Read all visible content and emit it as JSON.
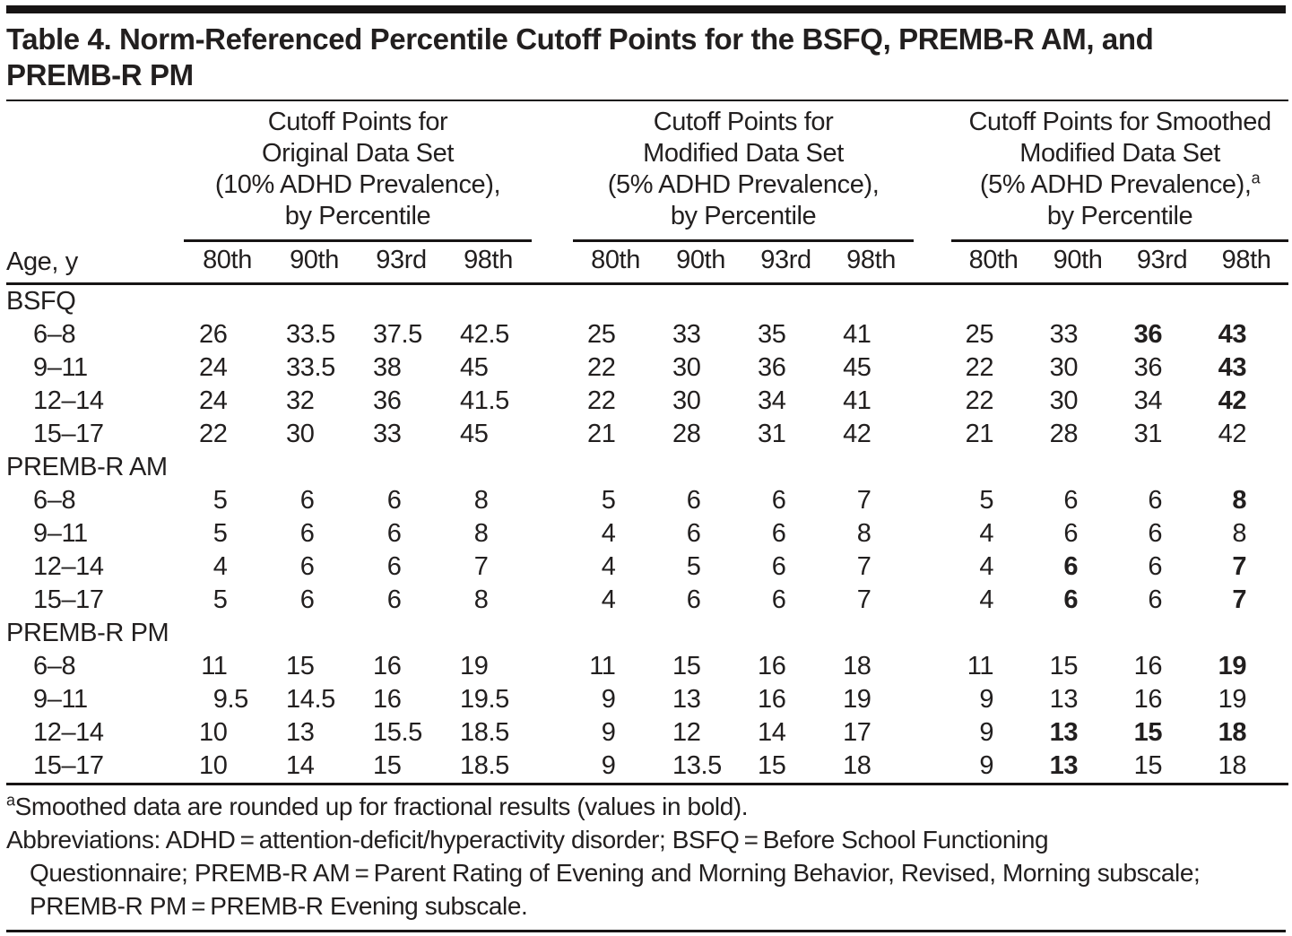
{
  "title_lines": [
    "Table 4. Norm-Referenced Percentile Cutoff Points for the BSFQ, PREMB-R AM, and",
    "PREMB-R PM"
  ],
  "table": {
    "row_header": "Age, y",
    "groups": [
      {
        "title_lines": [
          "Cutoff Points for",
          "Original Data Set",
          "(10% ADHD Prevalence),",
          "by Percentile"
        ],
        "cols": [
          "80th",
          "90th",
          "93rd",
          "98th"
        ]
      },
      {
        "title_lines": [
          "Cutoff Points for",
          "Modified Data Set",
          "(5% ADHD Prevalence),",
          "by Percentile"
        ],
        "cols": [
          "80th",
          "90th",
          "93rd",
          "98th"
        ]
      },
      {
        "title_lines": [
          "Cutoff Points for Smoothed",
          "Modified Data Set",
          "(5% ADHD Prevalence),",
          "by Percentile"
        ],
        "sup": "a",
        "cols": [
          "80th",
          "90th",
          "93rd",
          "98th"
        ]
      }
    ],
    "sections": [
      {
        "label": "BSFQ",
        "rows": [
          {
            "age": "6–8",
            "values": [
              "26",
              "33.5",
              "37.5",
              "42.5",
              "25",
              "33",
              "35",
              "41",
              "25",
              "33",
              "36",
              "43"
            ],
            "bold": [
              10,
              11
            ]
          },
          {
            "age": "9–11",
            "values": [
              "24",
              "33.5",
              "38",
              "45",
              "22",
              "30",
              "36",
              "45",
              "22",
              "30",
              "36",
              "43"
            ],
            "bold": [
              11
            ]
          },
          {
            "age": "12–14",
            "values": [
              "24",
              "32",
              "36",
              "41.5",
              "22",
              "30",
              "34",
              "41",
              "22",
              "30",
              "34",
              "42"
            ],
            "bold": [
              11
            ]
          },
          {
            "age": "15–17",
            "values": [
              "22",
              "30",
              "33",
              "45",
              "21",
              "28",
              "31",
              "42",
              "21",
              "28",
              "31",
              "42"
            ],
            "bold": []
          }
        ]
      },
      {
        "label": "PREMB-R AM",
        "rows": [
          {
            "age": "6–8",
            "values": [
              "5",
              "6",
              "6",
              "8",
              "5",
              "6",
              "6",
              "7",
              "5",
              "6",
              "6",
              "8"
            ],
            "bold": [
              11
            ]
          },
          {
            "age": "9–11",
            "values": [
              "5",
              "6",
              "6",
              "8",
              "4",
              "6",
              "6",
              "8",
              "4",
              "6",
              "6",
              "8"
            ],
            "bold": []
          },
          {
            "age": "12–14",
            "values": [
              "4",
              "6",
              "6",
              "7",
              "4",
              "5",
              "6",
              "7",
              "4",
              "6",
              "6",
              "7"
            ],
            "bold": [
              9,
              11
            ]
          },
          {
            "age": "15–17",
            "values": [
              "5",
              "6",
              "6",
              "8",
              "4",
              "6",
              "6",
              "7",
              "4",
              "6",
              "6",
              "7"
            ],
            "bold": [
              9,
              11
            ]
          }
        ]
      },
      {
        "label": "PREMB-R PM",
        "rows": [
          {
            "age": "6–8",
            "values": [
              "11",
              "15",
              "16",
              "19",
              "11",
              "15",
              "16",
              "18",
              "11",
              "15",
              "16",
              "19"
            ],
            "bold": [
              11
            ]
          },
          {
            "age": "9–11",
            "values": [
              "9.5",
              "14.5",
              "16",
              "19.5",
              "9",
              "13",
              "16",
              "19",
              "9",
              "13",
              "16",
              "19"
            ],
            "bold": []
          },
          {
            "age": "12–14",
            "values": [
              "10",
              "13",
              "15.5",
              "18.5",
              "9",
              "12",
              "14",
              "17",
              "9",
              "13",
              "15",
              "18"
            ],
            "bold": [
              9,
              10,
              11
            ]
          },
          {
            "age": "15–17",
            "values": [
              "10",
              "14",
              "15",
              "18.5",
              "9",
              "13.5",
              "15",
              "18",
              "9",
              "13",
              "15",
              "18"
            ],
            "bold": [
              9
            ]
          }
        ]
      }
    ]
  },
  "footnotes": {
    "marker": "a",
    "note": "Smoothed data are rounded up for fractional results (values in bold).",
    "abbrev_lines": [
      "Abbreviations: ADHD = attention-deficit/hyperactivity disorder; BSFQ = Before School Functioning",
      "Questionnaire; PREMB-R AM = Parent Rating of Evening and Morning Behavior, Revised, Morning subscale;",
      "PREMB-R PM = PREMB-R Evening subscale."
    ]
  }
}
